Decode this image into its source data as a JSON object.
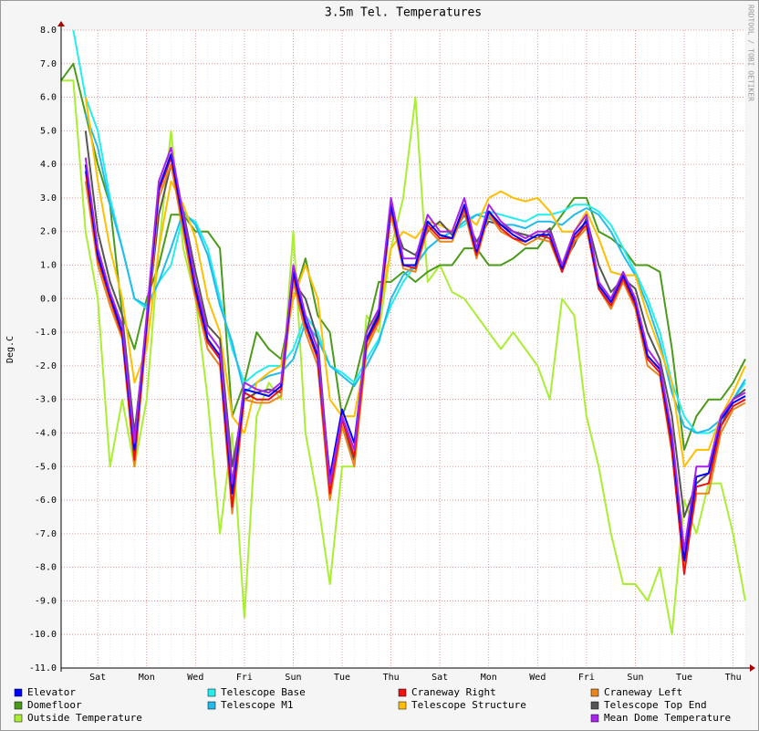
{
  "chart_data": {
    "type": "line",
    "title": "3.5m Tel. Temperatures",
    "y_label": "Deg.C",
    "watermark": "RRDTOOL / TOBI OETIKER",
    "ylim": [
      -11,
      8
    ],
    "yticks": [
      {
        "value": -11,
        "label": "-11.0"
      },
      {
        "value": -10,
        "label": "-10.0"
      },
      {
        "value": -9,
        "label": "-9.0"
      },
      {
        "value": -8,
        "label": "-8.0"
      },
      {
        "value": -7,
        "label": "-7.0"
      },
      {
        "value": -6,
        "label": "-6.0"
      },
      {
        "value": -5,
        "label": "-5.0"
      },
      {
        "value": -4,
        "label": "-4.0"
      },
      {
        "value": -3,
        "label": "-3.0"
      },
      {
        "value": -2,
        "label": "-2.0"
      },
      {
        "value": -1,
        "label": "-1.0"
      },
      {
        "value": 0,
        "label": "0.0"
      },
      {
        "value": 1,
        "label": "1.0"
      },
      {
        "value": 2,
        "label": "2.0"
      },
      {
        "value": 3,
        "label": "3.0"
      },
      {
        "value": 4,
        "label": "4.0"
      },
      {
        "value": 5,
        "label": "5.0"
      },
      {
        "value": 6,
        "label": "6.0"
      },
      {
        "value": 7,
        "label": "7.0"
      },
      {
        "value": 8,
        "label": "8.0"
      }
    ],
    "grid": true,
    "categories": [
      null,
      null,
      null,
      "Sat",
      null,
      null,
      null,
      "Mon",
      null,
      null,
      null,
      "Wed",
      null,
      null,
      null,
      "Fri",
      null,
      null,
      null,
      "Sun",
      null,
      null,
      null,
      "Tue",
      null,
      null,
      null,
      "Thu",
      null,
      null,
      null,
      "Sat",
      null,
      null,
      null,
      "Mon",
      null,
      null,
      null,
      "Wed",
      null,
      null,
      null,
      "Fri",
      null,
      null,
      null,
      "Sun",
      null,
      null,
      null,
      "Tue",
      null,
      null,
      null,
      "Thu",
      null
    ],
    "series": [
      {
        "name": "Elevator",
        "color": "#0000ff",
        "values": [
          null,
          null,
          4.0,
          1.3,
          0.1,
          -1.0,
          -4.5,
          -0.7,
          3.3,
          4.3,
          2.3,
          0.3,
          -1.2,
          -1.7,
          -5.8,
          -2.7,
          -2.8,
          -2.9,
          -2.6,
          0.8,
          -0.7,
          -1.7,
          -5.3,
          -3.3,
          -4.3,
          -1.2,
          -0.5,
          2.8,
          1.0,
          1.0,
          2.3,
          1.9,
          1.8,
          2.8,
          1.4,
          2.6,
          2.2,
          1.9,
          1.7,
          1.9,
          1.9,
          0.9,
          1.9,
          2.3,
          0.4,
          -0.1,
          0.7,
          -0.1,
          -1.7,
          -2.1,
          -4.2,
          -7.8,
          -5.3,
          -5.2,
          -3.6,
          -3.1,
          -2.9
        ]
      },
      {
        "name": "Telescope Base",
        "color": "#22eeee",
        "values": [
          null,
          8.0,
          6.0,
          5.0,
          3.0,
          1.5,
          0.0,
          -0.3,
          0.5,
          1.0,
          2.5,
          2.3,
          1.5,
          0.0,
          -1.5,
          -2.5,
          -2.2,
          -2.0,
          -2.0,
          -1.5,
          -0.5,
          -1.0,
          -2.0,
          -2.2,
          -2.5,
          -1.8,
          -1.2,
          -0.2,
          0.5,
          1.0,
          1.5,
          1.8,
          2.0,
          2.2,
          2.5,
          2.6,
          2.5,
          2.4,
          2.3,
          2.5,
          2.5,
          2.6,
          2.8,
          2.8,
          2.6,
          2.2,
          1.5,
          0.8,
          0.0,
          -1.0,
          -2.5,
          -3.5,
          -4.0,
          -4.0,
          -3.8,
          -3.0,
          -2.5
        ]
      },
      {
        "name": "Craneway Right",
        "color": "#ee1111",
        "values": [
          null,
          null,
          3.8,
          1.2,
          0.0,
          -1.1,
          -4.8,
          -0.8,
          3.2,
          4.2,
          2.2,
          0.2,
          -1.3,
          -1.8,
          -6.2,
          -2.8,
          -3.0,
          -3.0,
          -2.7,
          0.7,
          -0.8,
          -1.8,
          -5.8,
          -3.6,
          -4.7,
          -1.3,
          -0.6,
          2.7,
          1.0,
          0.9,
          2.2,
          1.8,
          1.8,
          2.7,
          1.3,
          2.6,
          2.1,
          1.8,
          1.7,
          1.9,
          1.8,
          0.8,
          1.8,
          2.2,
          0.3,
          -0.2,
          0.6,
          -0.2,
          -1.8,
          -2.2,
          -4.5,
          -8.2,
          -5.6,
          -5.5,
          -3.8,
          -3.2,
          -3.0
        ]
      },
      {
        "name": "Craneway Left",
        "color": "#e8861e",
        "values": [
          null,
          null,
          3.5,
          1.0,
          -0.2,
          -1.2,
          -5.0,
          -1.0,
          3.0,
          4.0,
          2.0,
          0.0,
          -1.5,
          -2.0,
          -6.4,
          -3.0,
          -3.1,
          -3.1,
          -2.9,
          0.5,
          -1.0,
          -2.0,
          -6.0,
          -3.8,
          -5.0,
          -1.5,
          -0.7,
          2.5,
          0.9,
          0.8,
          2.1,
          1.7,
          1.7,
          2.6,
          1.2,
          2.5,
          2.0,
          1.8,
          1.6,
          1.8,
          1.7,
          0.8,
          1.7,
          2.1,
          0.3,
          -0.3,
          0.5,
          -0.3,
          -2.0,
          -2.3,
          -4.6,
          -8.0,
          -5.8,
          -5.8,
          -4.0,
          -3.3,
          -3.1
        ]
      },
      {
        "name": "Domefloor",
        "color": "#4a9a1a",
        "values": [
          6.5,
          7.0,
          5.5,
          4.0,
          2.8,
          -0.5,
          -1.5,
          0.0,
          1.0,
          2.5,
          2.5,
          2.0,
          2.0,
          1.5,
          -3.5,
          -2.5,
          -1.0,
          -1.5,
          -1.8,
          0.0,
          1.2,
          -0.5,
          -1.0,
          -3.5,
          -2.5,
          -1.0,
          0.5,
          0.5,
          0.8,
          0.5,
          0.8,
          1.0,
          1.0,
          1.5,
          1.5,
          1.0,
          1.0,
          1.2,
          1.5,
          1.5,
          2.0,
          2.5,
          3.0,
          3.0,
          2.0,
          1.8,
          1.5,
          1.0,
          1.0,
          0.8,
          -1.5,
          -4.5,
          -3.5,
          -3.0,
          -3.0,
          -2.5,
          -1.8
        ]
      },
      {
        "name": "Telescope M1",
        "color": "#22bbee",
        "values": [
          null,
          null,
          5.5,
          4.5,
          2.8,
          1.5,
          0.0,
          -0.2,
          0.5,
          1.5,
          2.6,
          2.2,
          1.3,
          -0.2,
          -1.3,
          -2.8,
          -2.5,
          -2.3,
          -2.2,
          -1.8,
          -0.7,
          -1.2,
          -2.0,
          -2.3,
          -2.6,
          -2.0,
          -1.3,
          0.0,
          0.7,
          1.0,
          1.5,
          1.8,
          2.0,
          2.3,
          2.5,
          2.4,
          2.2,
          2.2,
          2.1,
          2.3,
          2.3,
          2.2,
          2.5,
          2.7,
          2.5,
          2.0,
          1.3,
          0.7,
          -0.2,
          -1.3,
          -2.8,
          -3.8,
          -4.0,
          -3.9,
          -3.6,
          -3.0,
          -2.4
        ]
      },
      {
        "name": "Telescope Structure",
        "color": "#ffbf00",
        "values": [
          null,
          null,
          6.0,
          3.5,
          1.5,
          0.0,
          -2.5,
          -1.5,
          1.5,
          3.5,
          2.8,
          1.8,
          0.0,
          -1.0,
          -3.5,
          -4.0,
          -2.5,
          -2.2,
          -2.0,
          0.0,
          1.0,
          0.0,
          -3.0,
          -3.5,
          -3.5,
          -1.5,
          -0.5,
          1.5,
          2.0,
          1.8,
          2.3,
          2.2,
          2.0,
          2.5,
          2.2,
          3.0,
          3.2,
          3.0,
          2.9,
          3.0,
          2.6,
          2.0,
          2.0,
          2.6,
          1.8,
          0.8,
          0.7,
          0.7,
          -0.5,
          -1.5,
          -2.5,
          -5.0,
          -4.5,
          -4.5,
          -3.5,
          -2.8,
          -2.0
        ]
      },
      {
        "name": "Telescope Top End",
        "color": "#555555",
        "values": [
          null,
          null,
          5.0,
          2.0,
          0.5,
          -0.5,
          -4.0,
          -0.8,
          2.5,
          4.0,
          2.6,
          0.8,
          -0.8,
          -1.2,
          -5.0,
          -3.0,
          -2.8,
          -2.7,
          -2.8,
          0.5,
          0.0,
          -1.2,
          -5.5,
          -3.8,
          -4.8,
          -1.2,
          -0.4,
          2.5,
          1.5,
          1.3,
          2.0,
          2.3,
          1.9,
          2.5,
          1.7,
          2.3,
          2.2,
          2.0,
          1.9,
          1.8,
          2.1,
          1.0,
          1.6,
          2.4,
          1.0,
          0.2,
          0.6,
          0.3,
          -1.0,
          -1.8,
          -3.5,
          -6.5,
          -5.5,
          -5.2,
          -3.8,
          -3.0,
          -2.7
        ]
      },
      {
        "name": "Outside Temperature",
        "color": "#aaee33",
        "values": [
          6.5,
          6.5,
          2.0,
          0.0,
          -5.0,
          -3.0,
          -5.0,
          -3.0,
          1.5,
          5.0,
          1.5,
          0.0,
          -3.0,
          -7.0,
          -4.0,
          -9.5,
          -3.5,
          -2.5,
          -3.0,
          2.0,
          -4.0,
          -6.0,
          -8.5,
          -5.0,
          -5.0,
          -0.5,
          -1.0,
          1.5,
          3.0,
          6.0,
          0.5,
          1.0,
          0.2,
          0.0,
          -0.5,
          -1.0,
          -1.5,
          -1.0,
          -1.5,
          -2.0,
          -3.0,
          0.0,
          -0.5,
          -3.5,
          -5.0,
          -7.0,
          -8.5,
          -8.5,
          -9.0,
          -8.0,
          -10.0,
          -6.0,
          -7.0,
          -5.5,
          -5.5,
          -7.0,
          -9.0
        ]
      },
      {
        "name": "Mean Dome Temperature",
        "color": "#aa22ee",
        "values": [
          null,
          null,
          4.2,
          1.5,
          0.2,
          -0.8,
          -4.3,
          -0.5,
          3.5,
          4.5,
          2.5,
          0.5,
          -1.0,
          -1.5,
          -5.5,
          -2.5,
          -2.7,
          -2.8,
          -2.5,
          1.0,
          -0.5,
          -1.5,
          -5.5,
          -3.5,
          -4.5,
          -1.0,
          -0.3,
          3.0,
          1.2,
          1.2,
          2.5,
          2.0,
          2.0,
          3.0,
          1.5,
          2.8,
          2.3,
          2.0,
          1.8,
          2.0,
          2.0,
          1.0,
          2.0,
          2.5,
          0.5,
          0.0,
          0.8,
          0.0,
          -1.5,
          -2.0,
          -4.0,
          -7.5,
          -5.0,
          -5.0,
          -3.5,
          -3.0,
          -2.8
        ]
      }
    ]
  }
}
